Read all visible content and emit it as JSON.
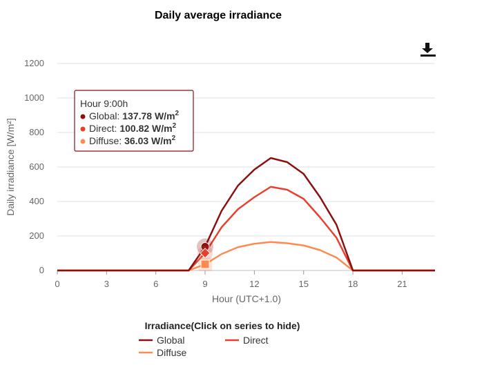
{
  "chart_data": {
    "type": "line",
    "title": "Daily average irradiance",
    "xlabel": "Hour (UTC+1.0)",
    "ylabel": "Daily irradiance [W/m²]",
    "xlim": [
      0,
      23
    ],
    "ylim": [
      0,
      1200
    ],
    "xticks": [
      "0",
      "3",
      "6",
      "9",
      "12",
      "15",
      "18",
      "21"
    ],
    "yticks": [
      "0",
      "200",
      "400",
      "600",
      "800",
      "1000",
      "1200"
    ],
    "grid": true,
    "x": [
      0,
      1,
      2,
      3,
      4,
      5,
      6,
      7,
      8,
      9,
      10,
      11,
      12,
      13,
      14,
      15,
      16,
      17,
      18,
      19,
      20,
      21,
      22,
      23
    ],
    "series": [
      {
        "name": "Global",
        "color": "#8b0f0f",
        "values": [
          0,
          0,
          0,
          0,
          0,
          0,
          0,
          0,
          0,
          137.78,
          345,
          492,
          585,
          652,
          628,
          560,
          425,
          265,
          0,
          0,
          0,
          0,
          0,
          0
        ]
      },
      {
        "name": "Direct",
        "color": "#e8402c",
        "values": [
          0,
          0,
          0,
          0,
          0,
          0,
          0,
          0,
          0,
          100.82,
          250,
          355,
          425,
          485,
          468,
          415,
          308,
          190,
          0,
          0,
          0,
          0,
          0,
          0
        ]
      },
      {
        "name": "Diffuse",
        "color": "#ff8a50",
        "values": [
          0,
          0,
          0,
          0,
          0,
          0,
          0,
          0,
          0,
          36.03,
          95,
          135,
          155,
          165,
          158,
          145,
          118,
          75,
          0,
          0,
          0,
          0,
          0,
          0
        ]
      }
    ],
    "legend": {
      "title": "Irradiance(Click on series to hide)",
      "position": "bottom"
    },
    "tooltip": {
      "header": "Hour 9:00h",
      "x": 9,
      "rows": [
        {
          "series": "Global",
          "label": "Global: ",
          "value": "137.78 W/m",
          "sup": "2"
        },
        {
          "series": "Direct",
          "label": "Direct: ",
          "value": "100.82 W/m",
          "sup": "2"
        },
        {
          "series": "Diffuse",
          "label": "Diffuse: ",
          "value": "36.03 W/m",
          "sup": "2"
        }
      ]
    }
  },
  "toolbar": {
    "download_icon": "download-icon"
  }
}
